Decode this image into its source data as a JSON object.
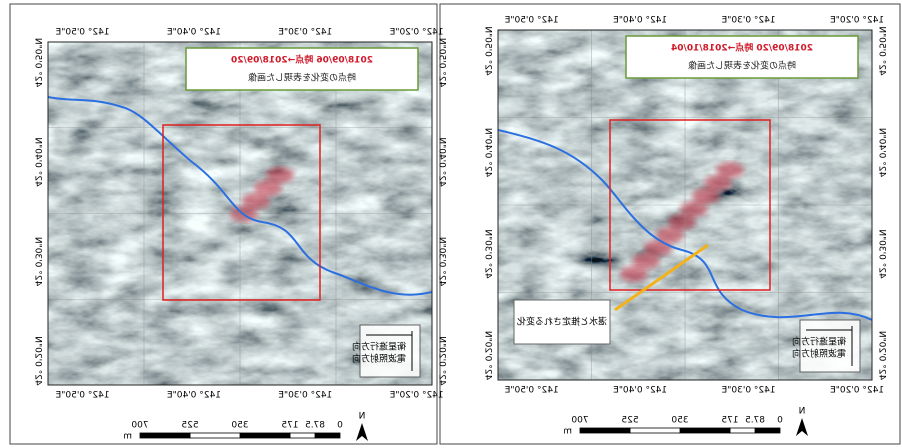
{
  "panels": [
    {
      "title": "2018/09/20 時点→2018/10/04",
      "subtitle": "時点の変化を表現した画像",
      "annotation": "湛水と推定される変化",
      "legend": [
        "衛星進行方向",
        "電波照射方向"
      ],
      "lon_labels": [
        "142° 0'20\"E",
        "142° 0'30\"E",
        "142° 0'40\"E",
        "142° 0'50\"E"
      ],
      "lat_labels": [
        "42° 0'50\"N",
        "42° 0'40\"N",
        "42° 0'30\"N",
        "42° 0'20\"N"
      ],
      "scale_ticks": [
        0,
        87.5,
        175,
        350,
        525,
        700
      ],
      "scale_unit": "m",
      "north": "N"
    },
    {
      "title": "2018/09/06 時点→2018/09/20",
      "subtitle": "時点の変化を表現した画像",
      "legend": [
        "衛星進行方向",
        "電波照射方向"
      ],
      "lon_labels": [
        "142° 0'20\"E",
        "142° 0'30\"E",
        "142° 0'40\"E",
        "142° 0'50\"E"
      ],
      "lat_labels": [
        "42° 0'50\"N",
        "42° 0'40\"N",
        "42° 0'30\"N",
        "42° 0'20\"N"
      ],
      "scale_ticks": [
        0,
        87.5,
        175,
        350,
        525,
        700
      ],
      "scale_unit": "m",
      "north": "N"
    }
  ]
}
